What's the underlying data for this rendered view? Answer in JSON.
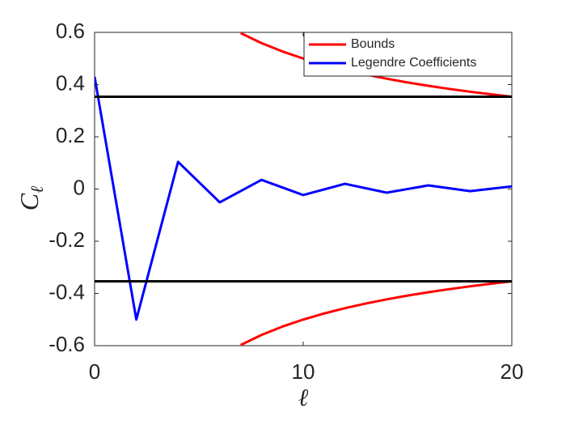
{
  "chart_data": {
    "type": "line",
    "xlabel": "ℓ",
    "ylabel": "C",
    "ylabel_subscript": "ℓ",
    "xlim": [
      0,
      20
    ],
    "ylim": [
      -0.6,
      0.6
    ],
    "xticks": [
      0,
      10,
      20
    ],
    "yticks": [
      -0.6,
      -0.4,
      -0.2,
      0,
      0.2,
      0.4,
      0.6
    ],
    "grid": false,
    "legend": "top-right",
    "series": [
      {
        "name": "Bounds",
        "color": "#ff0000",
        "x": [
          7,
          8,
          9,
          10,
          11,
          12,
          13,
          14,
          15,
          16,
          17,
          18,
          19,
          20
        ],
        "values": [
          0.5976,
          0.559,
          0.527,
          0.5,
          0.4767,
          0.4564,
          0.4385,
          0.4226,
          0.4082,
          0.3953,
          0.3835,
          0.3727,
          0.3627,
          0.3536
        ]
      },
      {
        "color": "#ff0000",
        "x": [
          7,
          8,
          9,
          10,
          11,
          12,
          13,
          14,
          15,
          16,
          17,
          18,
          19,
          20
        ],
        "values": [
          -0.5976,
          -0.559,
          -0.527,
          -0.5,
          -0.4767,
          -0.4564,
          -0.4385,
          -0.4226,
          -0.4082,
          -0.3953,
          -0.3835,
          -0.3727,
          -0.3627,
          -0.3536
        ]
      },
      {
        "name": "Legendre Coefficients",
        "color": "#0000ff",
        "x": [
          0,
          2,
          4,
          6,
          8,
          10,
          12,
          14,
          16,
          18,
          20
        ],
        "values": [
          0.43,
          -0.5,
          0.104,
          -0.051,
          0.035,
          -0.023,
          0.02,
          -0.014,
          0.014,
          -0.008,
          0.01
        ]
      },
      {
        "color": "#000000",
        "x": [
          0,
          20
        ],
        "values": [
          0.3536,
          0.3536
        ]
      },
      {
        "color": "#000000",
        "x": [
          0,
          20
        ],
        "values": [
          -0.3536,
          -0.3536
        ]
      }
    ]
  }
}
